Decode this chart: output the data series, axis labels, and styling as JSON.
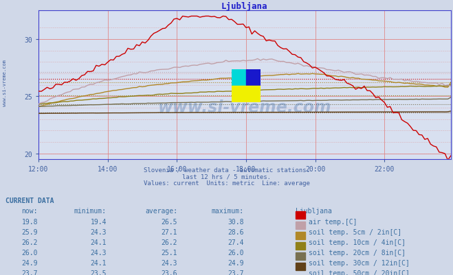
{
  "title": "Ljubljana",
  "subtitle1": "Slovenia / weather data - automatic stations.",
  "subtitle2": "last 12 hrs / 5 minutes.",
  "subtitle3": "Values: current  Units: metric  Line: average",
  "bg_color": "#d0d8e8",
  "plot_bg_color": "#d8e0f0",
  "title_color": "#2020cc",
  "text_color": "#4080c0",
  "xlim": [
    0,
    143
  ],
  "ylim": [
    19.5,
    32.5
  ],
  "yticks": [
    20,
    25,
    30
  ],
  "xtick_labels": [
    "12:00",
    "14:00",
    "16:00",
    "18:00",
    "20:00",
    "22:00"
  ],
  "xtick_positions": [
    0,
    24,
    48,
    72,
    96,
    120
  ],
  "series_colors": {
    "air_temp": "#cc0000",
    "soil5": "#c0a0a8",
    "soil10": "#b08828",
    "soil20": "#908018",
    "soil30": "#787050",
    "soil50": "#604018"
  },
  "avgs": {
    "air_temp": 26.5,
    "soil5": 27.1,
    "soil10": 26.2,
    "soil20": 25.1,
    "soil30": 24.3,
    "soil50": 23.6
  },
  "table_rows": [
    {
      "now": "19.8",
      "min": "19.4",
      "avg": "26.5",
      "max": "30.8",
      "label": "air temp.[C]",
      "color": "#cc0000"
    },
    {
      "now": "25.9",
      "min": "24.3",
      "avg": "27.1",
      "max": "28.6",
      "label": "soil temp. 5cm / 2in[C]",
      "color": "#c0a0a8"
    },
    {
      "now": "26.2",
      "min": "24.1",
      "avg": "26.2",
      "max": "27.4",
      "label": "soil temp. 10cm / 4in[C]",
      "color": "#b08828"
    },
    {
      "now": "26.0",
      "min": "24.3",
      "avg": "25.1",
      "max": "26.0",
      "label": "soil temp. 20cm / 8in[C]",
      "color": "#908018"
    },
    {
      "now": "24.9",
      "min": "24.1",
      "avg": "24.3",
      "max": "24.9",
      "label": "soil temp. 30cm / 12in[C]",
      "color": "#787050"
    },
    {
      "now": "23.7",
      "min": "23.5",
      "avg": "23.6",
      "max": "23.7",
      "label": "soil temp. 50cm / 20in[C]",
      "color": "#604018"
    }
  ]
}
